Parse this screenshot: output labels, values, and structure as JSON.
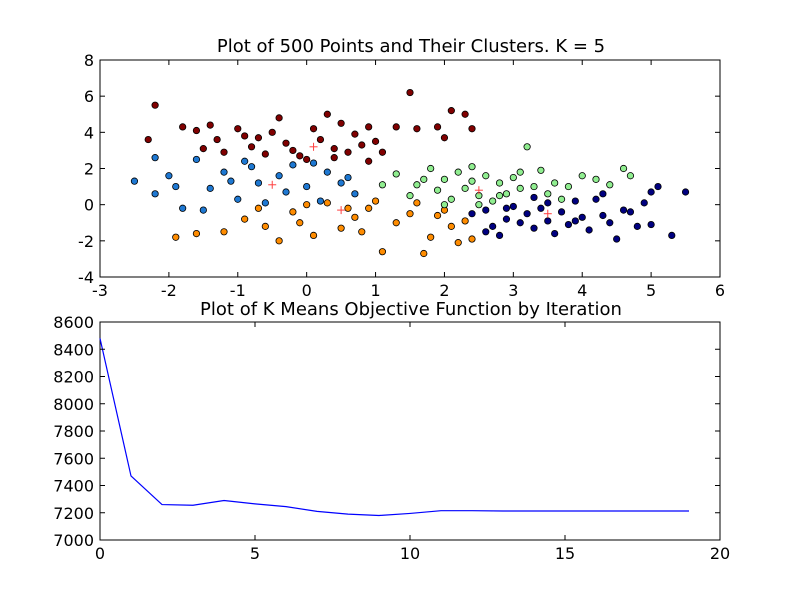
{
  "chart_data": [
    {
      "type": "scatter",
      "title": "Plot of 500 Points and Their Clusters. K = 5",
      "xlabel": "",
      "ylabel": "",
      "xlim": [
        -3,
        6
      ],
      "ylim": [
        -4,
        8
      ],
      "xticks": [
        -3,
        -2,
        -1,
        0,
        1,
        2,
        3,
        4,
        5,
        6
      ],
      "yticks": [
        -4,
        -2,
        0,
        2,
        4,
        6,
        8
      ],
      "grid": false,
      "legend": "none",
      "cluster_colors": [
        "#800000",
        "#1e78d2",
        "#ff8c00",
        "#90ee90",
        "#000080"
      ],
      "centroid_color": "#ff4040",
      "centroids": [
        [
          0.1,
          3.2
        ],
        [
          -0.5,
          1.1
        ],
        [
          0.5,
          -0.3
        ],
        [
          2.5,
          0.8
        ],
        [
          3.5,
          -0.5
        ]
      ],
      "points": [
        [
          -2.2,
          5.5,
          0
        ],
        [
          -2.3,
          3.6,
          0
        ],
        [
          -1.8,
          4.3,
          0
        ],
        [
          -1.6,
          4.1,
          0
        ],
        [
          -1.4,
          4.4,
          0
        ],
        [
          -1.3,
          3.6,
          0
        ],
        [
          -1.2,
          2.9,
          0
        ],
        [
          -1.0,
          4.2,
          0
        ],
        [
          -0.9,
          3.8,
          0
        ],
        [
          -0.8,
          3.2,
          0
        ],
        [
          -0.7,
          3.7,
          0
        ],
        [
          -0.6,
          2.8,
          0
        ],
        [
          -0.5,
          4.0,
          0
        ],
        [
          -0.4,
          4.8,
          0
        ],
        [
          -0.3,
          3.4,
          0
        ],
        [
          -0.2,
          3.0,
          0
        ],
        [
          0.0,
          2.5,
          0
        ],
        [
          0.1,
          4.2,
          0
        ],
        [
          0.2,
          3.6,
          0
        ],
        [
          0.3,
          5.0,
          0
        ],
        [
          0.4,
          3.1,
          0
        ],
        [
          0.5,
          4.5,
          0
        ],
        [
          0.6,
          2.9,
          0
        ],
        [
          0.7,
          3.9,
          0
        ],
        [
          0.8,
          3.3,
          0
        ],
        [
          0.9,
          4.3,
          0
        ],
        [
          1.0,
          3.5,
          0
        ],
        [
          1.1,
          2.9,
          0
        ],
        [
          1.3,
          4.3,
          0
        ],
        [
          1.5,
          6.2,
          0
        ],
        [
          1.6,
          4.2,
          0
        ],
        [
          1.9,
          4.3,
          0
        ],
        [
          2.0,
          3.7,
          0
        ],
        [
          2.1,
          5.2,
          0
        ],
        [
          2.3,
          5.0,
          0
        ],
        [
          2.4,
          4.2,
          0
        ],
        [
          -0.1,
          2.7,
          0
        ],
        [
          0.4,
          2.6,
          0
        ],
        [
          -1.5,
          3.1,
          0
        ],
        [
          0.9,
          2.4,
          0
        ],
        [
          -2.5,
          1.3,
          1
        ],
        [
          -2.2,
          2.6,
          1
        ],
        [
          -2.0,
          1.6,
          1
        ],
        [
          -1.9,
          1.0,
          1
        ],
        [
          -1.6,
          2.5,
          1
        ],
        [
          -1.4,
          0.9,
          1
        ],
        [
          -1.2,
          1.8,
          1
        ],
        [
          -1.0,
          0.3,
          1
        ],
        [
          -0.8,
          2.1,
          1
        ],
        [
          -0.7,
          1.2,
          1
        ],
        [
          -0.6,
          0.1,
          1
        ],
        [
          -0.4,
          1.6,
          1
        ],
        [
          -0.3,
          0.7,
          1
        ],
        [
          -0.2,
          2.2,
          1
        ],
        [
          0.0,
          1.0,
          1
        ],
        [
          0.2,
          0.2,
          1
        ],
        [
          0.3,
          1.8,
          1
        ],
        [
          0.5,
          1.2,
          1
        ],
        [
          0.7,
          0.6,
          1
        ],
        [
          -1.8,
          -0.2,
          1
        ],
        [
          -2.2,
          0.6,
          1
        ],
        [
          -1.1,
          1.3,
          1
        ],
        [
          -0.9,
          2.4,
          1
        ],
        [
          0.1,
          2.3,
          1
        ],
        [
          0.6,
          1.5,
          1
        ],
        [
          -1.5,
          -0.3,
          1
        ],
        [
          -1.9,
          -1.8,
          2
        ],
        [
          -1.6,
          -1.6,
          2
        ],
        [
          -1.2,
          -1.5,
          2
        ],
        [
          -0.9,
          -0.8,
          2
        ],
        [
          -0.6,
          -1.2,
          2
        ],
        [
          -0.4,
          -2.0,
          2
        ],
        [
          -0.2,
          -0.4,
          2
        ],
        [
          0.1,
          -1.7,
          2
        ],
        [
          0.3,
          0.1,
          2
        ],
        [
          0.5,
          -1.3,
          2
        ],
        [
          0.7,
          -0.7,
          2
        ],
        [
          0.9,
          -0.2,
          2
        ],
        [
          1.1,
          -2.6,
          2
        ],
        [
          1.3,
          -1.0,
          2
        ],
        [
          1.5,
          -0.5,
          2
        ],
        [
          1.7,
          -2.7,
          2
        ],
        [
          1.8,
          -1.8,
          2
        ],
        [
          1.9,
          -0.6,
          2
        ],
        [
          2.1,
          -1.2,
          2
        ],
        [
          2.2,
          -2.1,
          2
        ],
        [
          2.3,
          -0.9,
          2
        ],
        [
          2.4,
          -1.9,
          2
        ],
        [
          0.0,
          0.0,
          2
        ],
        [
          0.6,
          -0.2,
          2
        ],
        [
          1.0,
          0.2,
          2
        ],
        [
          -0.7,
          -0.2,
          2
        ],
        [
          1.6,
          0.1,
          2
        ],
        [
          2.0,
          -0.3,
          2
        ],
        [
          -0.1,
          -1.0,
          2
        ],
        [
          0.8,
          -1.5,
          2
        ],
        [
          1.1,
          1.1,
          3
        ],
        [
          1.3,
          1.7,
          3
        ],
        [
          1.5,
          0.5,
          3
        ],
        [
          1.6,
          1.1,
          3
        ],
        [
          1.8,
          2.0,
          3
        ],
        [
          1.9,
          0.8,
          3
        ],
        [
          2.0,
          1.4,
          3
        ],
        [
          2.1,
          0.3,
          3
        ],
        [
          2.2,
          1.8,
          3
        ],
        [
          2.3,
          0.9,
          3
        ],
        [
          2.4,
          1.3,
          3
        ],
        [
          2.5,
          0.5,
          3
        ],
        [
          2.6,
          1.6,
          3
        ],
        [
          2.7,
          0.2,
          3
        ],
        [
          2.8,
          1.2,
          3
        ],
        [
          2.9,
          0.6,
          3
        ],
        [
          3.0,
          1.5,
          3
        ],
        [
          3.1,
          0.9,
          3
        ],
        [
          3.2,
          3.2,
          3
        ],
        [
          3.3,
          1.0,
          3
        ],
        [
          3.4,
          1.9,
          3
        ],
        [
          3.5,
          0.6,
          3
        ],
        [
          3.6,
          1.2,
          3
        ],
        [
          3.8,
          1.0,
          3
        ],
        [
          4.0,
          1.6,
          3
        ],
        [
          4.2,
          1.4,
          3
        ],
        [
          4.4,
          1.1,
          3
        ],
        [
          4.6,
          2.0,
          3
        ],
        [
          4.7,
          1.6,
          3
        ],
        [
          2.0,
          0.0,
          3
        ],
        [
          2.5,
          0.0,
          3
        ],
        [
          2.8,
          0.5,
          3
        ],
        [
          3.1,
          1.8,
          3
        ],
        [
          1.7,
          1.4,
          3
        ],
        [
          2.4,
          2.1,
          3
        ],
        [
          3.7,
          0.3,
          3
        ],
        [
          2.4,
          -0.5,
          4
        ],
        [
          2.6,
          -0.3,
          4
        ],
        [
          2.7,
          -1.2,
          4
        ],
        [
          2.8,
          -1.7,
          4
        ],
        [
          2.9,
          -0.8,
          4
        ],
        [
          3.0,
          -0.1,
          4
        ],
        [
          3.1,
          -1.0,
          4
        ],
        [
          3.2,
          -0.5,
          4
        ],
        [
          3.3,
          -1.3,
          4
        ],
        [
          3.4,
          -0.2,
          4
        ],
        [
          3.5,
          -0.9,
          4
        ],
        [
          3.6,
          -1.6,
          4
        ],
        [
          3.7,
          -0.4,
          4
        ],
        [
          3.8,
          -1.1,
          4
        ],
        [
          3.9,
          0.2,
          4
        ],
        [
          4.0,
          -0.7,
          4
        ],
        [
          4.1,
          -1.4,
          4
        ],
        [
          4.2,
          0.3,
          4
        ],
        [
          4.3,
          -0.6,
          4
        ],
        [
          4.4,
          -1.0,
          4
        ],
        [
          4.5,
          -1.9,
          4
        ],
        [
          4.6,
          -0.3,
          4
        ],
        [
          4.8,
          -1.2,
          4
        ],
        [
          5.0,
          -1.1,
          4
        ],
        [
          5.1,
          1.0,
          4
        ],
        [
          5.3,
          -1.7,
          4
        ],
        [
          5.5,
          0.7,
          4
        ],
        [
          4.9,
          0.1,
          4
        ],
        [
          3.3,
          0.4,
          4
        ],
        [
          2.9,
          -0.2,
          4
        ],
        [
          3.9,
          -0.9,
          4
        ],
        [
          4.7,
          -0.4,
          4
        ],
        [
          3.5,
          0.1,
          4
        ],
        [
          2.6,
          -1.5,
          4
        ],
        [
          4.3,
          0.6,
          4
        ],
        [
          5.0,
          0.7,
          4
        ]
      ]
    },
    {
      "type": "line",
      "title": "Plot of K Means Objective Function by Iteration",
      "xlabel": "",
      "ylabel": "",
      "xlim": [
        0,
        20
      ],
      "ylim": [
        7000,
        8600
      ],
      "xticks": [
        0,
        5,
        10,
        15,
        20
      ],
      "yticks": [
        7000,
        7200,
        7400,
        7600,
        7800,
        8000,
        8200,
        8400,
        8600
      ],
      "grid": false,
      "legend": "none",
      "line_color": "#0000ff",
      "x": [
        0,
        1,
        2,
        3,
        4,
        5,
        6,
        7,
        8,
        9,
        10,
        11,
        12,
        13,
        14,
        15,
        16,
        17,
        18,
        19
      ],
      "y": [
        8480,
        7470,
        7260,
        7255,
        7290,
        7265,
        7245,
        7210,
        7190,
        7180,
        7195,
        7215,
        7215,
        7213,
        7213,
        7213,
        7213,
        7213,
        7213,
        7213
      ]
    }
  ]
}
